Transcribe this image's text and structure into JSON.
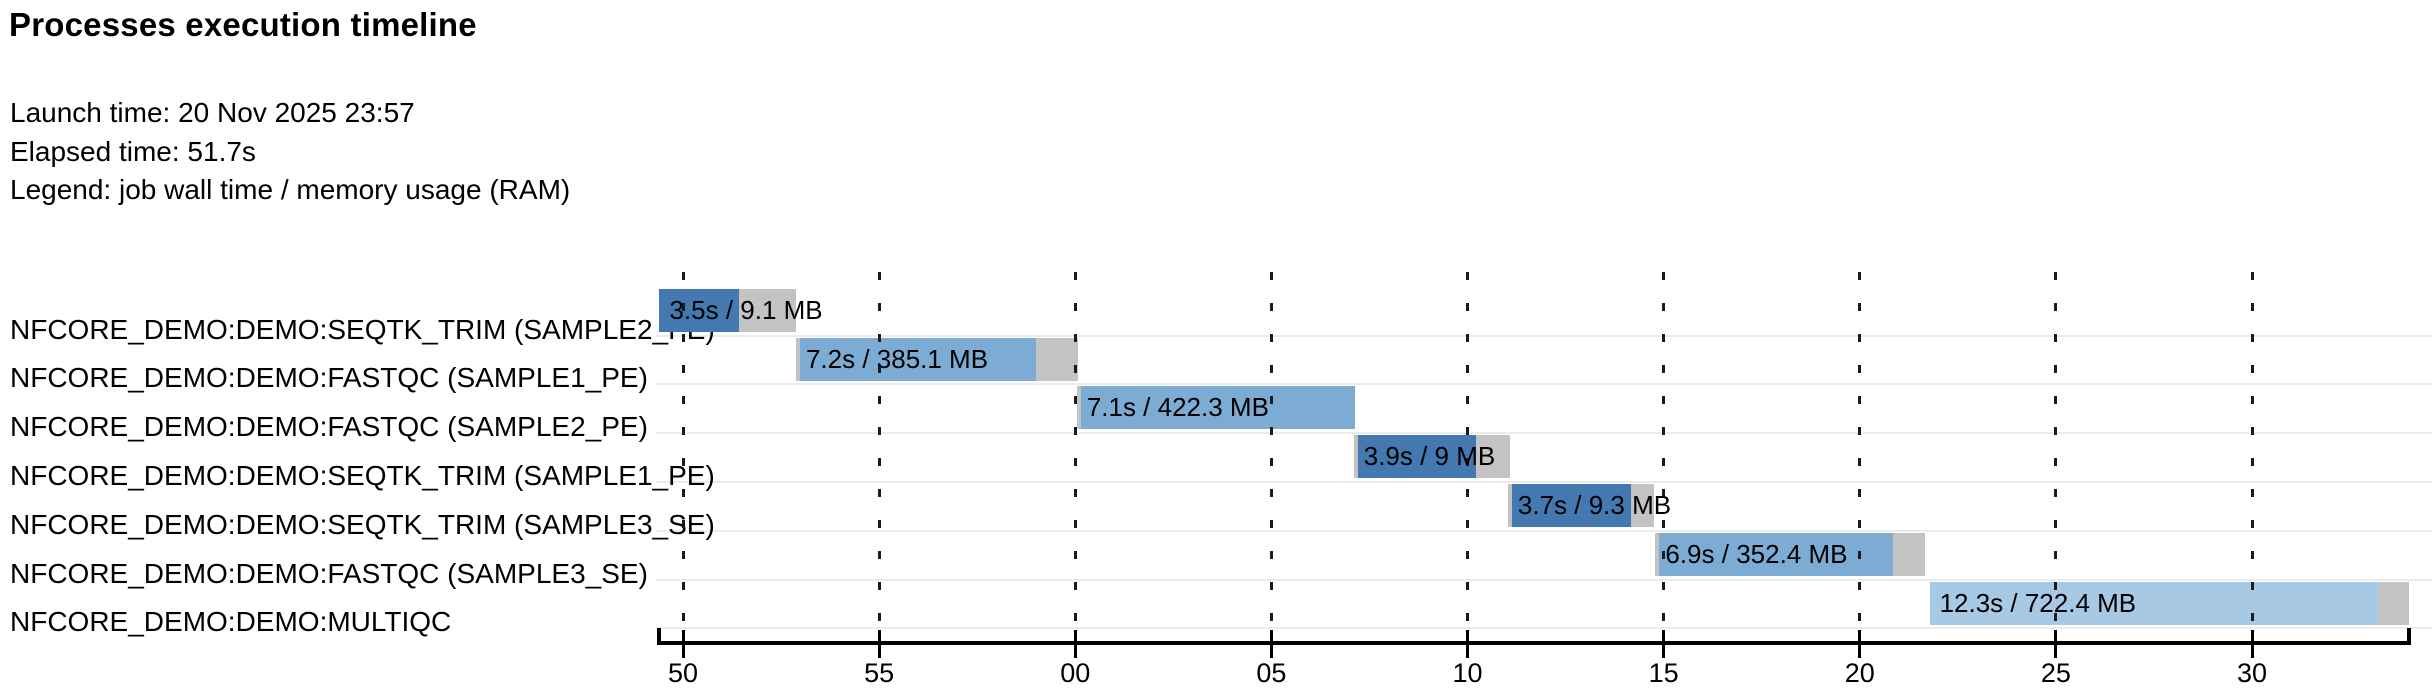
{
  "header": {
    "title": "Processes execution timeline",
    "launch_time_label": "Launch time: 20 Nov 2025 23:57",
    "elapsed_time_label": "Elapsed time: 51.7s",
    "legend_label": "Legend: job wall time / memory usage (RAM)"
  },
  "chart_data": {
    "type": "bar",
    "subtype": "gantt-timeline",
    "orientation": "horizontal",
    "title": "Processes execution timeline",
    "grid": "dashed-vertical",
    "legend_position": "header-text",
    "x_axis": {
      "unit": "clock seconds (23:57:50 → 23:58:30)",
      "min_s": 49.4,
      "max_s": 94.0,
      "ticks": [
        {
          "label": "50",
          "s": 50
        },
        {
          "label": "55",
          "s": 55
        },
        {
          "label": "00",
          "s": 60
        },
        {
          "label": "05",
          "s": 65
        },
        {
          "label": "10",
          "s": 70
        },
        {
          "label": "15",
          "s": 75
        },
        {
          "label": "20",
          "s": 80
        },
        {
          "label": "25",
          "s": 85
        },
        {
          "label": "30",
          "s": 90
        }
      ]
    },
    "colors": {
      "seqtk_trim": "#4478b1",
      "fastqc": "#7cabd3",
      "multiqc": "#a8c9e4",
      "overhead": "#c3c3c3"
    },
    "tasks": [
      {
        "process": "NFCORE_DEMO:DEMO:SEQTK_TRIM (SAMPLE2_PE)",
        "bar_label": "3.5s / 9.1 MB",
        "wall_time": "3.5s",
        "memory": "9.1 MB",
        "start_s": 49.4,
        "run_start_s": 49.4,
        "run_end_s": 51.43,
        "end_s": 52.88,
        "color_key": "seqtk_trim"
      },
      {
        "process": "NFCORE_DEMO:DEMO:FASTQC (SAMPLE1_PE)",
        "bar_label": "7.2s / 385.1 MB",
        "wall_time": "7.2s",
        "memory": "385.1 MB",
        "start_s": 52.88,
        "run_start_s": 52.98,
        "run_end_s": 59.0,
        "end_s": 60.07,
        "color_key": "fastqc"
      },
      {
        "process": "NFCORE_DEMO:DEMO:FASTQC (SAMPLE2_PE)",
        "bar_label": "7.1s / 422.3 MB",
        "wall_time": "7.1s",
        "memory": "422.3 MB",
        "start_s": 60.04,
        "run_start_s": 60.14,
        "run_end_s": 67.12,
        "end_s": 67.12,
        "color_key": "fastqc"
      },
      {
        "process": "NFCORE_DEMO:DEMO:SEQTK_TRIM (SAMPLE1_PE)",
        "bar_label": "3.9s / 9 MB",
        "wall_time": "3.9s",
        "memory": "9 MB",
        "start_s": 67.1,
        "run_start_s": 67.2,
        "run_end_s": 70.21,
        "end_s": 71.08,
        "color_key": "seqtk_trim"
      },
      {
        "process": "NFCORE_DEMO:DEMO:SEQTK_TRIM (SAMPLE3_SE)",
        "bar_label": "3.7s / 9.3 MB",
        "wall_time": "3.7s",
        "memory": "9.3 MB",
        "start_s": 71.03,
        "run_start_s": 71.13,
        "run_end_s": 74.18,
        "end_s": 74.75,
        "color_key": "seqtk_trim"
      },
      {
        "process": "NFCORE_DEMO:DEMO:FASTQC (SAMPLE3_SE)",
        "bar_label": "6.9s / 352.4 MB",
        "wall_time": "6.9s",
        "memory": "352.4 MB",
        "start_s": 74.79,
        "run_start_s": 74.89,
        "run_end_s": 80.86,
        "end_s": 81.67,
        "color_key": "fastqc"
      },
      {
        "process": "NFCORE_DEMO:DEMO:MULTIQC",
        "bar_label": "12.3s / 722.4 MB",
        "wall_time": "12.3s",
        "memory": "722.4 MB",
        "start_s": 81.78,
        "run_start_s": 81.78,
        "run_end_s": 93.22,
        "end_s": 94.01,
        "color_key": "multiqc"
      }
    ]
  }
}
